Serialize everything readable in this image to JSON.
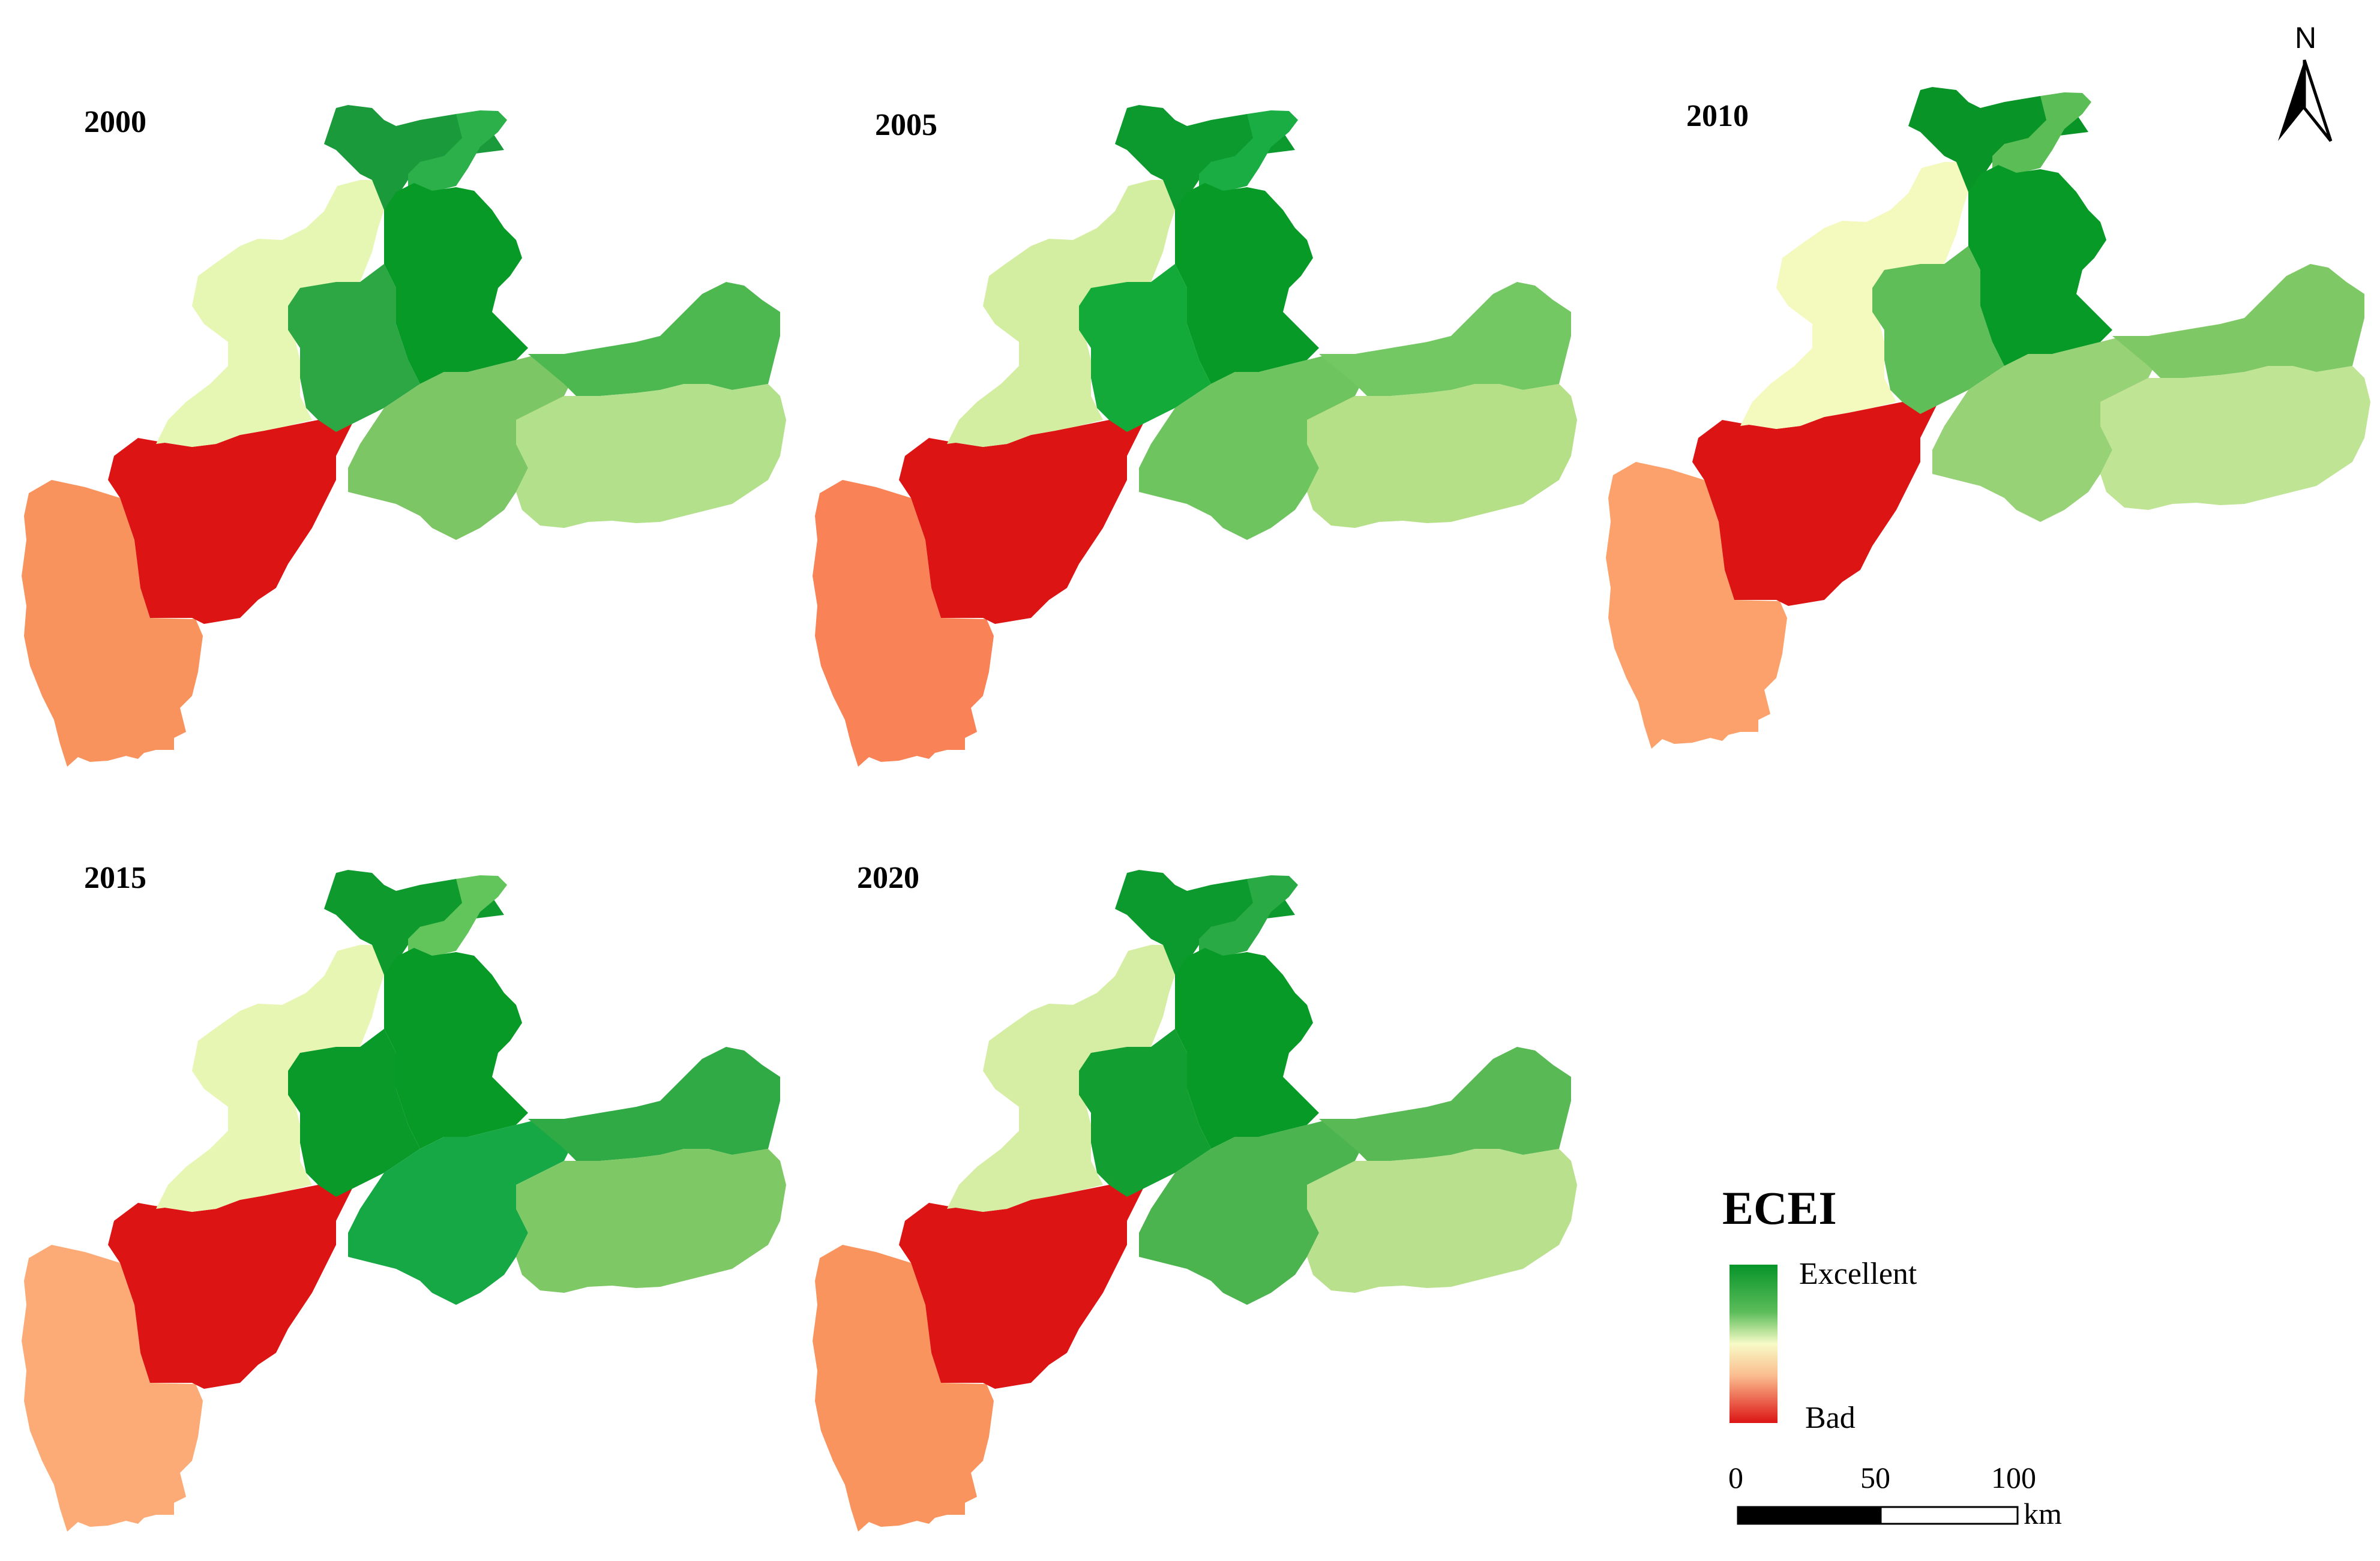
{
  "maps": [
    {
      "year": "2000",
      "colors": {
        "north_west": "#1a9a3a",
        "north_east": "#2bb04a",
        "center": "#089a26",
        "upper_west": "#e6f7b4",
        "mid": "#2da743",
        "south_center": "#7cc665",
        "east_upper": "#4db84f",
        "east_lower": "#b3e08a",
        "red": "#dc1414",
        "southwest": "#f8935e"
      }
    },
    {
      "year": "2005",
      "colors": {
        "north_west": "#0c9a2e",
        "north_east": "#19ad43",
        "center": "#089a26",
        "upper_west": "#d3eea0",
        "mid": "#13aa39",
        "south_center": "#6ec45f",
        "east_upper": "#74c863",
        "east_lower": "#b6e088",
        "red": "#dc1414",
        "southwest": "#f98356"
      }
    },
    {
      "year": "2010",
      "colors": {
        "north_west": "#089426",
        "north_east": "#5bbd55",
        "center": "#079a26",
        "upper_west": "#f4f9be",
        "mid": "#5fbe58",
        "south_center": "#98d276",
        "east_upper": "#7fc866",
        "east_lower": "#bfe493",
        "red": "#dc1414",
        "southwest": "#fca16b"
      }
    },
    {
      "year": "2015",
      "colors": {
        "north_west": "#0f9a2e",
        "north_east": "#62c55b",
        "center": "#089a26",
        "upper_west": "#e8f6b3",
        "mid": "#0a9a2a",
        "south_center": "#15a844",
        "east_upper": "#2faa44",
        "east_lower": "#7fc866",
        "red": "#dc1414",
        "southwest": "#fcab77"
      }
    },
    {
      "year": "2020",
      "colors": {
        "north_west": "#0c9a2e",
        "north_east": "#2aaa45",
        "center": "#089a26",
        "upper_west": "#d5eea3",
        "mid": "#129e30",
        "south_center": "#4cb44e",
        "east_upper": "#58b955",
        "east_lower": "#b9e08d",
        "red": "#dc1414",
        "southwest": "#fa945f"
      }
    }
  ],
  "legend": {
    "title": "ECEI",
    "high_label": "Excellent",
    "low_label": "Bad",
    "gradient": [
      "#07942a",
      "#5cbd5a",
      "#f7fbc7",
      "#fbbd8f",
      "#dc1414"
    ]
  },
  "scale_bar": {
    "tick_0": "0",
    "tick_1": "50",
    "tick_2": "100",
    "unit": "km"
  },
  "north_arrow": {
    "label": "N"
  }
}
